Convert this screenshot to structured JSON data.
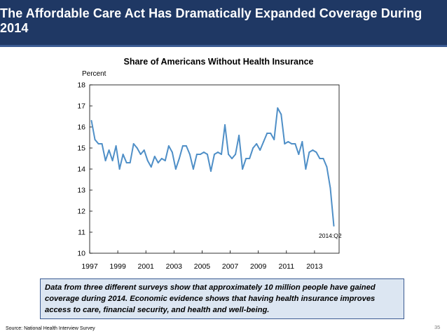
{
  "header": {
    "title": "The Affordable Care Act Has Dramatically Expanded Coverage During 2014",
    "background": "#1f3864"
  },
  "chart_data": {
    "type": "line",
    "title": "Share of Americans Without Health Insurance",
    "ylabel": "Percent",
    "xlabel": "",
    "ylim": [
      10,
      18
    ],
    "yticks": [
      "10",
      "11",
      "12",
      "13",
      "14",
      "15",
      "16",
      "17",
      "18"
    ],
    "xticks": [
      "1997",
      "1999",
      "2001",
      "2003",
      "2005",
      "2007",
      "2009",
      "2011",
      "2013"
    ],
    "grid": false,
    "legend": "none",
    "annotation": "2014:Q2",
    "line_color": "#4f8fc7",
    "series": [
      {
        "x": [
          "1997:Q1",
          "1997:Q2",
          "1997:Q3",
          "1997:Q4",
          "1998:Q1",
          "1998:Q2",
          "1998:Q3",
          "1998:Q4",
          "1999:Q1",
          "1999:Q2",
          "1999:Q3",
          "1999:Q4",
          "2000:Q1",
          "2000:Q2",
          "2000:Q3",
          "2000:Q4",
          "2001:Q1",
          "2001:Q2",
          "2001:Q3",
          "2001:Q4",
          "2002:Q1",
          "2002:Q2",
          "2002:Q3",
          "2002:Q4",
          "2003:Q1",
          "2003:Q2",
          "2003:Q3",
          "2003:Q4",
          "2004:Q1",
          "2004:Q2",
          "2004:Q3",
          "2004:Q4",
          "2005:Q1",
          "2005:Q2",
          "2005:Q3",
          "2005:Q4",
          "2006:Q1",
          "2006:Q2",
          "2006:Q3",
          "2006:Q4",
          "2007:Q1",
          "2007:Q2",
          "2007:Q3",
          "2007:Q4",
          "2008:Q1",
          "2008:Q2",
          "2008:Q3",
          "2008:Q4",
          "2009:Q1",
          "2009:Q2",
          "2009:Q3",
          "2009:Q4",
          "2010:Q1",
          "2010:Q2",
          "2010:Q3",
          "2010:Q4",
          "2011:Q1",
          "2011:Q2",
          "2011:Q3",
          "2011:Q4",
          "2012:Q1",
          "2012:Q2",
          "2012:Q3",
          "2012:Q4",
          "2013:Q1",
          "2013:Q2",
          "2013:Q3",
          "2013:Q4",
          "2014:Q1",
          "2014:Q2"
        ],
        "values": [
          16.3,
          15.4,
          15.2,
          15.2,
          14.4,
          14.9,
          14.4,
          15.1,
          14.0,
          14.7,
          14.3,
          14.3,
          15.2,
          15.0,
          14.7,
          14.9,
          14.4,
          14.1,
          14.6,
          14.3,
          14.5,
          14.4,
          15.1,
          14.8,
          14.0,
          14.5,
          15.1,
          15.1,
          14.7,
          14.0,
          14.7,
          14.7,
          14.8,
          14.7,
          13.9,
          14.7,
          14.8,
          14.7,
          16.1,
          14.7,
          14.5,
          14.7,
          15.6,
          14.0,
          14.5,
          14.5,
          15.0,
          15.2,
          14.9,
          15.3,
          15.7,
          15.7,
          15.4,
          16.9,
          16.6,
          15.2,
          15.3,
          15.2,
          15.2,
          14.7,
          15.3,
          14.0,
          14.8,
          14.9,
          14.8,
          14.5,
          14.5,
          14.1,
          13.1,
          11.3
        ]
      }
    ]
  },
  "note": {
    "text": "Data from three different surveys show that approximately 10 million people have gained coverage during 2014.  Economic evidence shows that having health insurance improves access to care, financial security, and health and well-being."
  },
  "source": "Source: National Health Interview Survey",
  "page_number": "35"
}
